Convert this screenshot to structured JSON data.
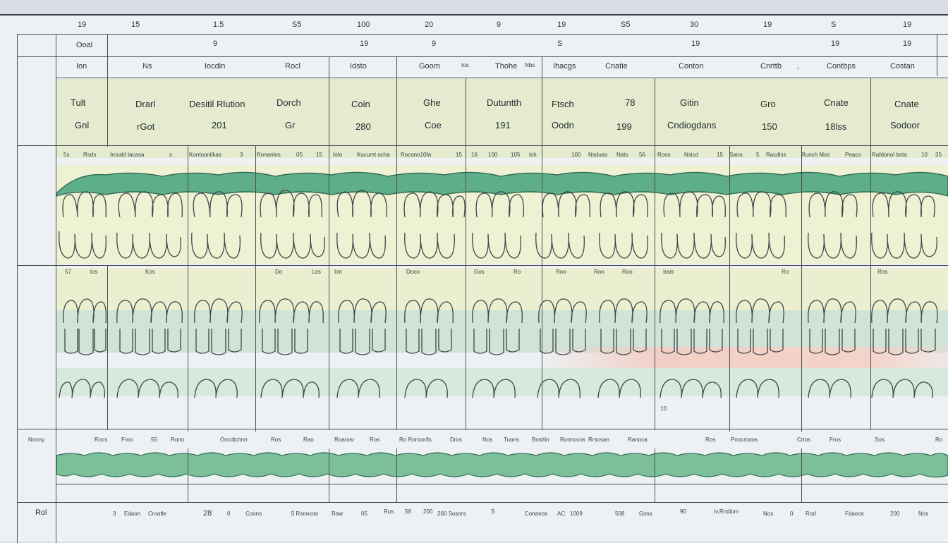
{
  "colors": {
    "paper": "#eef1f4",
    "header_green": "#e4ebcf",
    "gum_green": "#5fae8a",
    "tooth_yellow": "#eef1d0",
    "mint": "#cfe3d5",
    "blush": "#f2cfc6",
    "line": "#4a4e55"
  },
  "row0": [
    {
      "text": "19"
    },
    {
      "text": "15"
    },
    {
      "text": "1.5"
    },
    {
      "text": "S5"
    },
    {
      "text": "100"
    },
    {
      "text": "20"
    },
    {
      "text": "9"
    },
    {
      "text": "19"
    },
    {
      "text": "S5"
    },
    {
      "text": "30"
    },
    {
      "text": "19"
    },
    {
      "text": "S"
    },
    {
      "text": "19"
    }
  ],
  "row1": {
    "label": "Ooal",
    "values": [
      {
        "text": "9"
      },
      {
        "text": "19"
      },
      {
        "text": "9"
      },
      {
        "text": "S"
      },
      {
        "text": "19"
      },
      {
        "text": "19"
      },
      {
        "text": "19"
      }
    ]
  },
  "row2": [
    {
      "text": "Ion"
    },
    {
      "text": "Ns"
    },
    {
      "text": "Iocdin"
    },
    {
      "text": "Rocl"
    },
    {
      "text": "Idsto"
    },
    {
      "text": "Goom"
    },
    {
      "text": "Ios"
    },
    {
      "text": "Thohe"
    },
    {
      "text": "Nbs"
    },
    {
      "text": "Ihacgs"
    },
    {
      "text": "Cnatie"
    },
    {
      "text": "Conton"
    },
    {
      "text": "Cnrttb"
    },
    {
      "text": ","
    },
    {
      "text": "Contbps"
    },
    {
      "text": "Costan"
    }
  ],
  "header_top": [
    {
      "text": "Tult"
    },
    {
      "text": "Drarl"
    },
    {
      "text": "Desitil Rlution"
    },
    {
      "text": "Dorch"
    },
    {
      "text": "Coin"
    },
    {
      "text": "Ghe"
    },
    {
      "text": "Dutuntth"
    },
    {
      "text": "Ftsch"
    },
    {
      "text": "78"
    },
    {
      "text": "Gitin"
    },
    {
      "text": "Gro"
    },
    {
      "text": "Cnate"
    },
    {
      "text": "Cnate"
    }
  ],
  "header_bottom": [
    {
      "text": "Gnl"
    },
    {
      "text": "rGot"
    },
    {
      "text": "201"
    },
    {
      "text": "Gr"
    },
    {
      "text": "280"
    },
    {
      "text": "Coe"
    },
    {
      "text": "191"
    },
    {
      "text": "Oodn"
    },
    {
      "text": "199"
    },
    {
      "text": "Cndiogdans"
    },
    {
      "text": "150"
    },
    {
      "text": "18lss"
    },
    {
      "text": "Sodoor"
    }
  ],
  "upper_labels": [
    {
      "text": "5s"
    },
    {
      "text": "Rsds"
    },
    {
      "text": "Iroudd Iacasa"
    },
    {
      "text": "s"
    },
    {
      "text": "Kontuonilkas"
    },
    {
      "text": "3"
    },
    {
      "text": "Ronanlos"
    },
    {
      "text": "05"
    },
    {
      "text": "15"
    },
    {
      "text": "Ioto"
    },
    {
      "text": "Kucumt ocha"
    },
    {
      "text": "Rocono10fa"
    },
    {
      "text": "15"
    },
    {
      "text": "16"
    },
    {
      "text": "100"
    },
    {
      "text": "105"
    },
    {
      "text": "Ich"
    },
    {
      "text": "100"
    },
    {
      "text": "Nsduas"
    },
    {
      "text": "Nats"
    },
    {
      "text": "56"
    },
    {
      "text": "Roos"
    },
    {
      "text": "Nsicd"
    },
    {
      "text": "15"
    },
    {
      "text": "Sano"
    },
    {
      "text": "5"
    },
    {
      "text": "Racdiss"
    },
    {
      "text": "Runch Mos"
    },
    {
      "text": "Peaco"
    },
    {
      "text": "Rafdonol bota"
    },
    {
      "text": "10"
    },
    {
      "text": "35"
    }
  ],
  "lower_labels": [
    {
      "text": "57"
    },
    {
      "text": "los"
    },
    {
      "text": "Kos"
    },
    {
      "text": "Do"
    },
    {
      "text": "Los"
    },
    {
      "text": "Ion"
    },
    {
      "text": "Dooo"
    },
    {
      "text": "Gos"
    },
    {
      "text": "Ro"
    },
    {
      "text": "Roo"
    },
    {
      "text": "Roo"
    },
    {
      "text": "Roo"
    },
    {
      "text": "Irais"
    },
    {
      "text": "Ro"
    },
    {
      "text": "Ros"
    }
  ],
  "mid_mark": {
    "text": "10"
  },
  "strip_side": {
    "text": "Noony"
  },
  "strip_labels": [
    {
      "text": "Rocs"
    },
    {
      "text": "Froo"
    },
    {
      "text": "55"
    },
    {
      "text": "Rono"
    },
    {
      "text": "Oocdtchnn"
    },
    {
      "text": "Ros"
    },
    {
      "text": "Rao"
    },
    {
      "text": "Roarosr"
    },
    {
      "text": "Ros"
    },
    {
      "text": "Ro Ronxorlls"
    },
    {
      "text": "Dros"
    },
    {
      "text": "Nos"
    },
    {
      "text": "Tuons"
    },
    {
      "text": "Bosttin"
    },
    {
      "text": "Rooncoos"
    },
    {
      "text": "Rrsosan"
    },
    {
      "text": "Ranoca"
    },
    {
      "text": "Ros"
    },
    {
      "text": "Poocrooos"
    },
    {
      "text": "Crtos"
    },
    {
      "text": "Fros"
    },
    {
      "text": "Sos"
    },
    {
      "text": "Ro"
    }
  ],
  "bottom": {
    "label": "Rol",
    "items": [
      {
        "text": "3"
      },
      {
        "text": "Edaon"
      },
      {
        "text": "Croatle"
      },
      {
        "text": "28"
      },
      {
        "text": "0"
      },
      {
        "text": "Coons"
      },
      {
        "text": "S Rsnocoo"
      },
      {
        "text": "Raw"
      },
      {
        "text": "05"
      },
      {
        "text": "Rus"
      },
      {
        "text": "58"
      },
      {
        "text": "200"
      },
      {
        "text": "200 Sosors"
      },
      {
        "text": "S"
      },
      {
        "text": "Conanos"
      },
      {
        "text": "AC"
      },
      {
        "text": "1009"
      },
      {
        "text": "508"
      },
      {
        "text": "Goss"
      },
      {
        "text": "90"
      },
      {
        "text": "Iv.Rndiom"
      },
      {
        "text": "Nos"
      },
      {
        "text": "0"
      },
      {
        "text": "Rod"
      },
      {
        "text": "Fdaoos"
      },
      {
        "text": "200"
      },
      {
        "text": "Nos"
      }
    ]
  }
}
